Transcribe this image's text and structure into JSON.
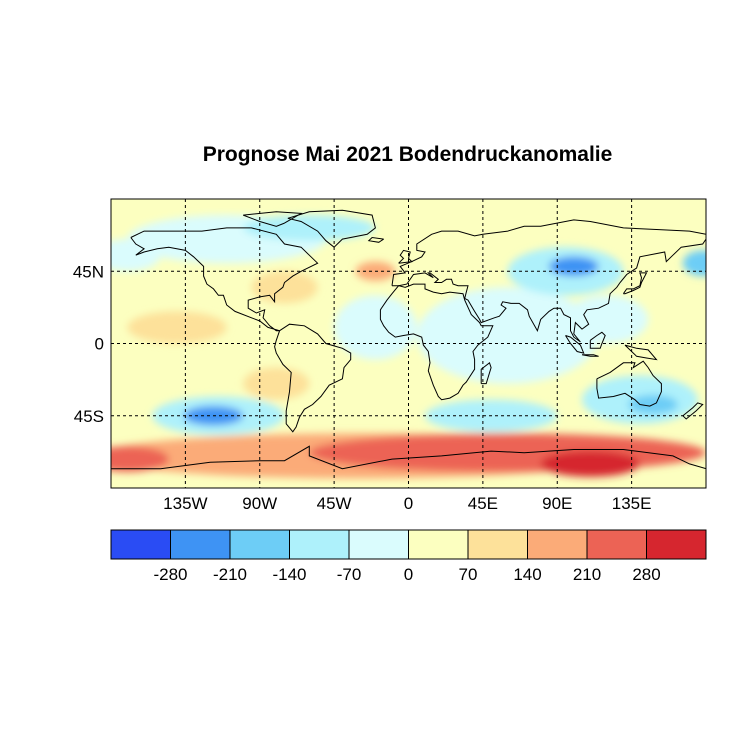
{
  "title": "Prognose Mai 2021 Bodendruckanomalie",
  "map": {
    "projection": "equirectangular",
    "lon_range": [
      -180,
      180
    ],
    "lat_range": [
      -90,
      90
    ],
    "lon_ticks": [
      {
        "value": -135,
        "label": "135W"
      },
      {
        "value": -90,
        "label": "90W"
      },
      {
        "value": -45,
        "label": "45W"
      },
      {
        "value": 0,
        "label": "0"
      },
      {
        "value": 45,
        "label": "45E"
      },
      {
        "value": 90,
        "label": "90E"
      },
      {
        "value": 135,
        "label": "135E"
      }
    ],
    "lat_ticks": [
      {
        "value": 45,
        "label": "45N"
      },
      {
        "value": 0,
        "label": "0"
      },
      {
        "value": -45,
        "label": "45S"
      }
    ],
    "grid": "dashed",
    "background_class": 5,
    "anomaly_regions": [
      {
        "name": "Southern Ocean high",
        "cx": -30,
        "cy": -70,
        "rx": 160,
        "ry": 14,
        "cls": 7
      },
      {
        "name": "Antarctic coast high",
        "cx": 60,
        "cy": -68,
        "rx": 120,
        "ry": 12,
        "cls": 8
      },
      {
        "name": "East Antarctic high",
        "cx": 110,
        "cy": -75,
        "rx": 30,
        "ry": 8,
        "cls": 9
      },
      {
        "name": "West Antarctic high",
        "cx": -170,
        "cy": -72,
        "rx": 25,
        "ry": 8,
        "cls": 8
      },
      {
        "name": "Subtropical South Atlantic",
        "cx": -80,
        "cy": -25,
        "rx": 20,
        "ry": 10,
        "cls": 6
      },
      {
        "name": "South Pacific low",
        "cx": -115,
        "cy": -45,
        "rx": 40,
        "ry": 12,
        "cls": 3
      },
      {
        "name": "South Pacific low core",
        "cx": -118,
        "cy": -45,
        "rx": 18,
        "ry": 6,
        "cls": 1
      },
      {
        "name": "Indian Ocean low",
        "cx": 50,
        "cy": -45,
        "rx": 40,
        "ry": 10,
        "cls": 3
      },
      {
        "name": "Australia low",
        "cx": 140,
        "cy": -35,
        "rx": 35,
        "ry": 15,
        "cls": 3
      },
      {
        "name": "Australia low core",
        "cx": 148,
        "cy": -38,
        "rx": 15,
        "ry": 6,
        "cls": 2
      },
      {
        "name": "Tropical Atlantic",
        "cx": -20,
        "cy": 10,
        "rx": 25,
        "ry": 20,
        "cls": 4
      },
      {
        "name": "Africa/Indian belt",
        "cx": 60,
        "cy": 5,
        "rx": 55,
        "ry": 30,
        "cls": 4
      },
      {
        "name": "West Pacific trough",
        "cx": 120,
        "cy": 15,
        "rx": 25,
        "ry": 15,
        "cls": 4
      },
      {
        "name": "North America low",
        "cx": -110,
        "cy": 65,
        "rx": 60,
        "ry": 15,
        "cls": 4
      },
      {
        "name": "Siberia low",
        "cx": 95,
        "cy": 45,
        "rx": 35,
        "ry": 15,
        "cls": 3
      },
      {
        "name": "Siberia low core",
        "cx": 100,
        "cy": 48,
        "rx": 15,
        "ry": 6,
        "cls": 1
      },
      {
        "name": "North Pacific low",
        "cx": 178,
        "cy": 50,
        "rx": 12,
        "ry": 8,
        "cls": 2
      },
      {
        "name": "North Atlantic high",
        "cx": -20,
        "cy": 45,
        "rx": 12,
        "ry": 6,
        "cls": 7
      },
      {
        "name": "Arctic low",
        "cx": -60,
        "cy": 72,
        "rx": 40,
        "ry": 8,
        "cls": 3
      },
      {
        "name": "Pacific coast",
        "cx": -170,
        "cy": 55,
        "rx": 20,
        "ry": 10,
        "cls": 4
      },
      {
        "name": "Gulf high",
        "cx": -75,
        "cy": 35,
        "rx": 20,
        "ry": 10,
        "cls": 6
      },
      {
        "name": "Eastern Pacific",
        "cx": -140,
        "cy": 10,
        "rx": 30,
        "ry": 10,
        "cls": 6
      }
    ]
  },
  "legend": {
    "colors": [
      "#2a4cf4",
      "#3e93f4",
      "#6dcdf6",
      "#aef1fb",
      "#dafcfd",
      "#fcffc0",
      "#fde19a",
      "#fbab78",
      "#ec6355",
      "#d6262f"
    ],
    "labels": [
      "-280",
      "-210",
      "-140",
      "-70",
      "0",
      "70",
      "140",
      "210",
      "280"
    ]
  }
}
